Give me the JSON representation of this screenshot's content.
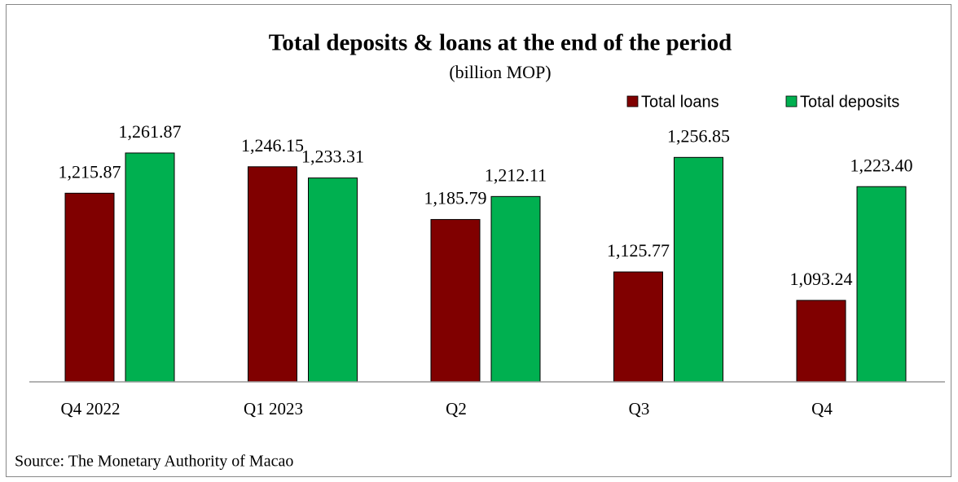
{
  "chart_data": {
    "type": "bar",
    "title": "Total deposits & loans at the end of the period",
    "subtitle": "(billion MOP)",
    "categories": [
      "Q4 2022",
      "Q1 2023",
      "Q2",
      "Q3",
      "Q4"
    ],
    "series": [
      {
        "name": "Total loans",
        "color": "#800000",
        "values": [
          1215.87,
          1246.15,
          1185.79,
          1125.77,
          1093.24
        ],
        "value_labels": [
          "1,215.87",
          "1,246.15",
          "1,185.79",
          "1,125.77",
          "1,093.24"
        ]
      },
      {
        "name": "Total deposits",
        "color": "#00b050",
        "values": [
          1261.87,
          1233.31,
          1212.11,
          1256.85,
          1223.4
        ],
        "value_labels": [
          "1,261.87",
          "1,233.31",
          "1,212.11",
          "1,256.85",
          "1,223.40"
        ]
      }
    ],
    "ylim": [
      1000,
      1300
    ],
    "legend": "top-right",
    "source": "Source: The Monetary Authority of Macao"
  }
}
